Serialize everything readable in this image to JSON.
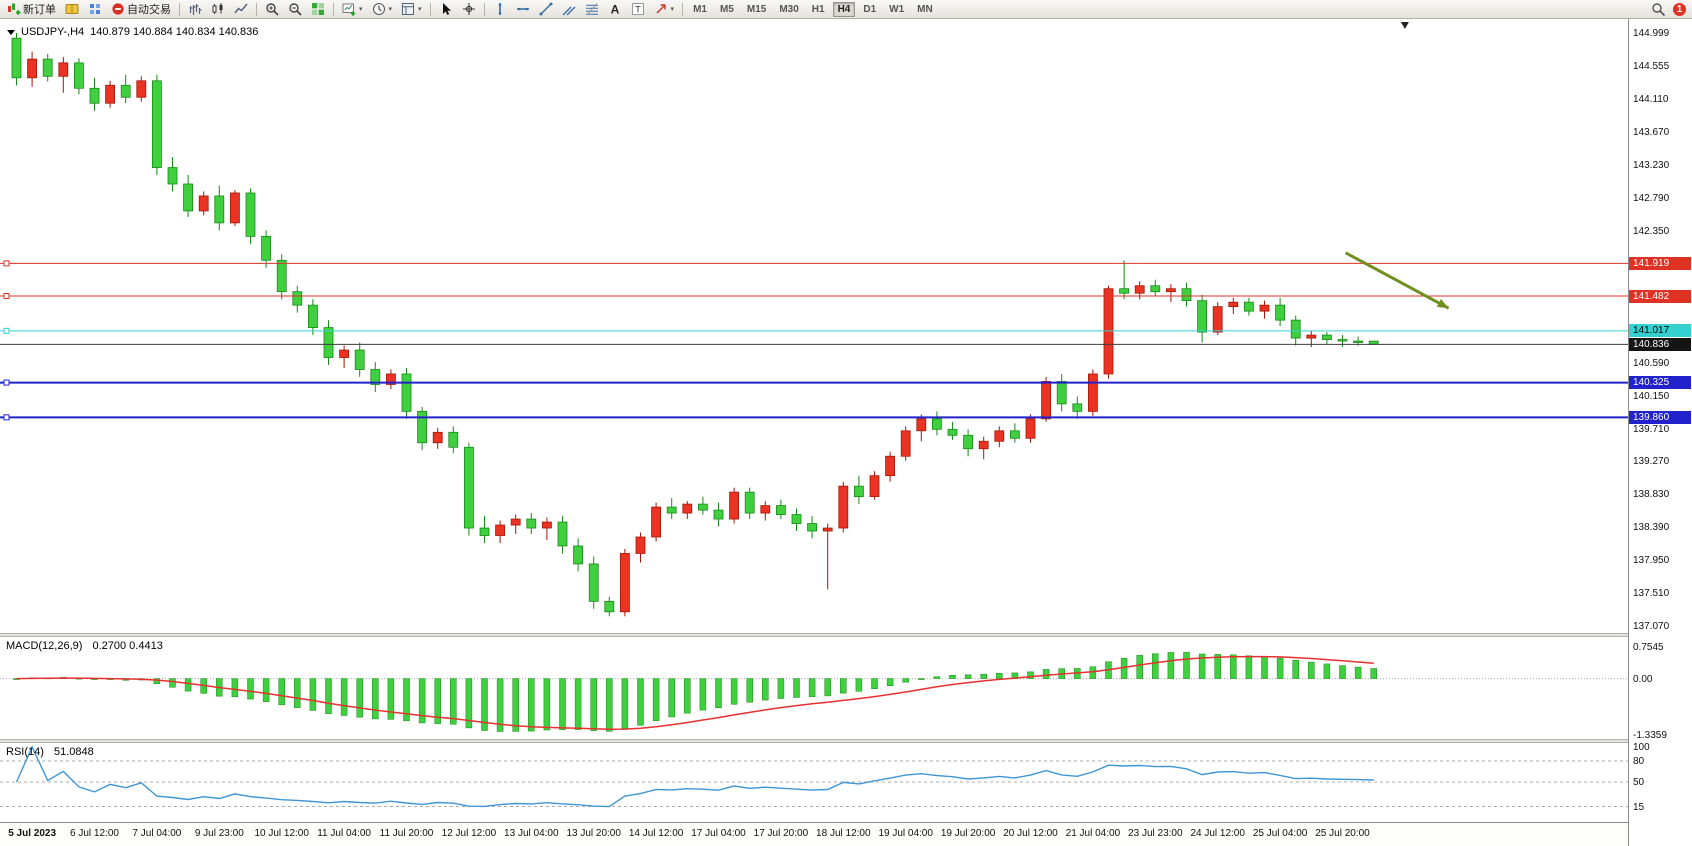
{
  "toolbar": {
    "badge": "1",
    "items": [
      {
        "type": "button",
        "name": "new-order",
        "icon": "new-order",
        "label": "新订单"
      },
      {
        "type": "button",
        "name": "market-watch",
        "icon": "book"
      },
      {
        "type": "button",
        "name": "data-window",
        "icon": "grid-dots"
      },
      {
        "type": "button",
        "name": "autotrade",
        "icon": "autotrade",
        "label": "自动交易"
      },
      {
        "type": "sep"
      },
      {
        "type": "button",
        "name": "chart-bars",
        "icon": "bars"
      },
      {
        "type": "button",
        "name": "chart-candlesticks",
        "icon": "candles"
      },
      {
        "type": "button",
        "name": "chart-line",
        "icon": "linechart"
      },
      {
        "type": "sep"
      },
      {
        "type": "button",
        "name": "zoom-in",
        "icon": "zoom-in"
      },
      {
        "type": "button",
        "name": "zoom-out",
        "icon": "zoom-out"
      },
      {
        "type": "button",
        "name": "tile-windows",
        "icon": "tiles"
      },
      {
        "type": "sep"
      },
      {
        "type": "button",
        "name": "new-chart",
        "icon": "new-chart",
        "caret": true
      },
      {
        "type": "button",
        "name": "periods",
        "icon": "clock",
        "caret": true
      },
      {
        "type": "button",
        "name": "indicators",
        "icon": "template",
        "caret": true
      },
      {
        "type": "sep"
      },
      {
        "type": "button",
        "name": "cursor",
        "icon": "cursor"
      },
      {
        "type": "button",
        "name": "crosshair",
        "icon": "crosshair"
      },
      {
        "type": "sep"
      },
      {
        "type": "button",
        "name": "vertical-line",
        "icon": "vline"
      },
      {
        "type": "button",
        "name": "horizontal-line",
        "icon": "hline"
      },
      {
        "type": "button",
        "name": "trendline",
        "icon": "trendline"
      },
      {
        "type": "button",
        "name": "equidistant-channel",
        "icon": "channel"
      },
      {
        "type": "button",
        "name": "fibonacci",
        "icon": "fibo"
      },
      {
        "type": "button",
        "name": "text",
        "icon": "text-a"
      },
      {
        "type": "button",
        "name": "text-label",
        "icon": "text-t"
      },
      {
        "type": "button",
        "name": "arrows",
        "icon": "arrow-shape",
        "caret": true
      },
      {
        "type": "sep"
      },
      {
        "type": "tf",
        "label": "M1"
      },
      {
        "type": "tf",
        "label": "M5"
      },
      {
        "type": "tf",
        "label": "M15"
      },
      {
        "type": "tf",
        "label": "M30"
      },
      {
        "type": "tf",
        "label": "H1"
      },
      {
        "type": "tf",
        "label": "H4",
        "active": true
      },
      {
        "type": "tf",
        "label": "D1"
      },
      {
        "type": "tf",
        "label": "W1"
      },
      {
        "type": "tf",
        "label": "MN"
      }
    ]
  },
  "chart": {
    "title_symbol": "USDJPY-,H4",
    "title_quote": "140.879 140.884 140.834 140.836"
  },
  "price_axis": {
    "plain_labels": [
      "144.999",
      "144.555",
      "144.110",
      "143.670",
      "143.230",
      "142.790",
      "142.350",
      "140.590",
      "140.150",
      "139.710",
      "139.270",
      "138.830",
      "138.390",
      "137.950",
      "137.510",
      "137.070"
    ],
    "badges": [
      {
        "text": "141.919",
        "bg": "#e03224",
        "fg": "#ffffff"
      },
      {
        "text": "141.482",
        "bg": "#e03224",
        "fg": "#ffffff"
      },
      {
        "text": "141.017",
        "bg": "#35d0d0",
        "fg": "#000000"
      },
      {
        "text": "140.836",
        "bg": "#141414",
        "fg": "#ffffff"
      },
      {
        "text": "140.325",
        "bg": "#2222cc",
        "fg": "#ffffff"
      },
      {
        "text": "139.860",
        "bg": "#2222cc",
        "fg": "#ffffff"
      }
    ]
  },
  "hlines": [
    {
      "price": 141.919,
      "color": "#e03224",
      "width": 1
    },
    {
      "price": 141.482,
      "color": "#e03224",
      "width": 1
    },
    {
      "price": 141.017,
      "color": "#35d0d0",
      "width": 1
    },
    {
      "price": 140.836,
      "color": "#3c3c3c",
      "width": 1,
      "no_handle": true
    },
    {
      "price": 140.325,
      "color": "#2222cc",
      "width": 2
    },
    {
      "price": 139.86,
      "color": "#2222cc",
      "width": 2
    }
  ],
  "macd": {
    "name": "MACD(12,26,9)",
    "values": "0.2700 0.4413",
    "axis": [
      {
        "text": "0.7545",
        "v": 0.7545
      },
      {
        "text": "0.00",
        "v": 0
      },
      {
        "text": "-1.3359",
        "v": -1.3359
      }
    ]
  },
  "rsi": {
    "name": "RSI(14)",
    "value": "51.0848",
    "axis": [
      {
        "text": "100",
        "v": 100
      },
      {
        "text": "80",
        "v": 80
      },
      {
        "text": "50",
        "v": 50
      },
      {
        "text": "15",
        "v": 15
      }
    ],
    "levels": [
      80,
      50,
      15
    ]
  },
  "time_axis": [
    {
      "t": "5 Jul 2023",
      "i": 1
    },
    {
      "t": "6 Jul 12:00",
      "i": 5
    },
    {
      "t": "7 Jul 04:00",
      "i": 9
    },
    {
      "t": "9 Jul 23:00",
      "i": 13
    },
    {
      "t": "10 Jul 12:00",
      "i": 17
    },
    {
      "t": "11 Jul 04:00",
      "i": 21
    },
    {
      "t": "11 Jul 20:00",
      "i": 25
    },
    {
      "t": "12 Jul 12:00",
      "i": 29
    },
    {
      "t": "13 Jul 04:00",
      "i": 33
    },
    {
      "t": "13 Jul 20:00",
      "i": 37
    },
    {
      "t": "14 Jul 12:00",
      "i": 41
    },
    {
      "t": "17 Jul 04:00",
      "i": 45
    },
    {
      "t": "17 Jul 20:00",
      "i": 49
    },
    {
      "t": "18 Jul 12:00",
      "i": 53
    },
    {
      "t": "19 Jul 04:00",
      "i": 57
    },
    {
      "t": "19 Jul 20:00",
      "i": 61
    },
    {
      "t": "20 Jul 12:00",
      "i": 65
    },
    {
      "t": "21 Jul 04:00",
      "i": 69
    },
    {
      "t": "23 Jul 23:00",
      "i": 73
    },
    {
      "t": "24 Jul 12:00",
      "i": 77
    },
    {
      "t": "25 Jul 04:00",
      "i": 81
    },
    {
      "t": "25 Jul 20:00",
      "i": 85
    }
  ],
  "chart_data": {
    "type": "candlestick",
    "symbol": "USDJPY-",
    "timeframe": "H4",
    "title": "USDJPY-,H4",
    "y_range": [
      137.07,
      144.999
    ],
    "up_color_convention": "red-up-green-down",
    "ohlc": [
      [
        144.93,
        145.0,
        144.3,
        144.4
      ],
      [
        144.4,
        144.75,
        144.28,
        144.65
      ],
      [
        144.65,
        144.72,
        144.35,
        144.42
      ],
      [
        144.42,
        144.68,
        144.2,
        144.6
      ],
      [
        144.6,
        144.66,
        144.18,
        144.26
      ],
      [
        144.26,
        144.4,
        143.96,
        144.06
      ],
      [
        144.06,
        144.36,
        144.0,
        144.3
      ],
      [
        144.3,
        144.44,
        144.06,
        144.14
      ],
      [
        144.14,
        144.42,
        144.08,
        144.36
      ],
      [
        144.36,
        144.44,
        143.1,
        143.2
      ],
      [
        143.2,
        143.34,
        142.88,
        142.98
      ],
      [
        142.98,
        143.1,
        142.54,
        142.62
      ],
      [
        142.62,
        142.88,
        142.56,
        142.82
      ],
      [
        142.82,
        142.96,
        142.36,
        142.46
      ],
      [
        142.46,
        142.9,
        142.42,
        142.86
      ],
      [
        142.86,
        142.92,
        142.18,
        142.28
      ],
      [
        142.28,
        142.36,
        141.86,
        141.96
      ],
      [
        141.96,
        142.04,
        141.44,
        141.54
      ],
      [
        141.54,
        141.62,
        141.26,
        141.36
      ],
      [
        141.36,
        141.44,
        140.96,
        141.06
      ],
      [
        141.06,
        141.16,
        140.56,
        140.66
      ],
      [
        140.66,
        140.82,
        140.52,
        140.76
      ],
      [
        140.76,
        140.86,
        140.4,
        140.5
      ],
      [
        140.5,
        140.6,
        140.2,
        140.3
      ],
      [
        140.3,
        140.5,
        140.24,
        140.44
      ],
      [
        140.44,
        140.52,
        139.84,
        139.94
      ],
      [
        139.94,
        140.0,
        139.42,
        139.52
      ],
      [
        139.52,
        139.72,
        139.44,
        139.66
      ],
      [
        139.66,
        139.74,
        139.38,
        139.46
      ],
      [
        139.46,
        139.52,
        138.28,
        138.38
      ],
      [
        138.38,
        138.54,
        138.18,
        138.28
      ],
      [
        138.28,
        138.48,
        138.18,
        138.42
      ],
      [
        138.42,
        138.56,
        138.3,
        138.5
      ],
      [
        138.5,
        138.58,
        138.3,
        138.38
      ],
      [
        138.38,
        138.52,
        138.22,
        138.46
      ],
      [
        138.46,
        138.54,
        138.04,
        138.14
      ],
      [
        138.14,
        138.24,
        137.8,
        137.9
      ],
      [
        137.9,
        138.0,
        137.3,
        137.4
      ],
      [
        137.4,
        137.46,
        137.2,
        137.26
      ],
      [
        137.26,
        138.1,
        137.2,
        138.04
      ],
      [
        138.04,
        138.32,
        137.92,
        138.26
      ],
      [
        138.26,
        138.72,
        138.2,
        138.66
      ],
      [
        138.66,
        138.78,
        138.5,
        138.58
      ],
      [
        138.58,
        138.74,
        138.5,
        138.7
      ],
      [
        138.7,
        138.8,
        138.56,
        138.62
      ],
      [
        138.62,
        138.72,
        138.4,
        138.5
      ],
      [
        138.5,
        138.92,
        138.44,
        138.86
      ],
      [
        138.86,
        138.92,
        138.5,
        138.58
      ],
      [
        138.58,
        138.74,
        138.48,
        138.68
      ],
      [
        138.68,
        138.76,
        138.5,
        138.56
      ],
      [
        138.56,
        138.64,
        138.34,
        138.44
      ],
      [
        138.44,
        138.54,
        138.24,
        138.34
      ],
      [
        138.34,
        138.44,
        137.56,
        138.38
      ],
      [
        138.38,
        139.0,
        138.32,
        138.94
      ],
      [
        138.94,
        139.08,
        138.7,
        138.8
      ],
      [
        138.8,
        139.14,
        138.76,
        139.08
      ],
      [
        139.08,
        139.4,
        139.0,
        139.34
      ],
      [
        139.34,
        139.74,
        139.28,
        139.68
      ],
      [
        139.68,
        139.9,
        139.54,
        139.84
      ],
      [
        139.84,
        139.94,
        139.62,
        139.7
      ],
      [
        139.7,
        139.8,
        139.56,
        139.62
      ],
      [
        139.62,
        139.7,
        139.34,
        139.44
      ],
      [
        139.44,
        139.6,
        139.3,
        139.54
      ],
      [
        139.54,
        139.74,
        139.46,
        139.68
      ],
      [
        139.68,
        139.78,
        139.52,
        139.58
      ],
      [
        139.58,
        139.9,
        139.52,
        139.84
      ],
      [
        139.84,
        140.4,
        139.8,
        140.34
      ],
      [
        140.34,
        140.44,
        139.94,
        140.04
      ],
      [
        140.04,
        140.14,
        139.84,
        139.94
      ],
      [
        139.94,
        140.5,
        139.88,
        140.44
      ],
      [
        140.44,
        141.62,
        140.38,
        141.58
      ],
      [
        141.58,
        141.96,
        141.44,
        141.52
      ],
      [
        141.52,
        141.68,
        141.44,
        141.62
      ],
      [
        141.62,
        141.7,
        141.48,
        141.54
      ],
      [
        141.54,
        141.64,
        141.4,
        141.58
      ],
      [
        141.58,
        141.66,
        141.34,
        141.42
      ],
      [
        141.42,
        141.5,
        140.86,
        141.0
      ],
      [
        141.0,
        141.4,
        140.96,
        141.34
      ],
      [
        141.34,
        141.46,
        141.24,
        141.4
      ],
      [
        141.4,
        141.46,
        141.22,
        141.28
      ],
      [
        141.28,
        141.42,
        141.18,
        141.36
      ],
      [
        141.36,
        141.46,
        141.08,
        141.16
      ],
      [
        141.16,
        141.22,
        140.82,
        140.92
      ],
      [
        140.92,
        141.02,
        140.8,
        140.96
      ],
      [
        140.96,
        141.0,
        140.84,
        140.9
      ],
      [
        140.9,
        140.96,
        140.8,
        140.88
      ],
      [
        140.88,
        140.94,
        140.82,
        140.86
      ],
      [
        140.879,
        140.884,
        140.834,
        140.836
      ]
    ],
    "indicators": {
      "macd_params": [
        12,
        26,
        9
      ],
      "macd_current": [
        0.27,
        0.4413
      ],
      "macd_range": [
        -1.3359,
        0.7545
      ],
      "rsi_period": 14,
      "rsi_current": 51.0848,
      "rsi_levels": [
        80,
        50,
        15
      ]
    },
    "horizontal_levels": [
      141.919,
      141.482,
      141.017,
      140.836,
      140.325,
      139.86
    ]
  },
  "annotations": {
    "arrow": {
      "i1": 85.2,
      "p1": 142.06,
      "i2": 91.8,
      "p2": 141.32,
      "color": "#6f8f1f"
    },
    "shift_marker_i": 89
  }
}
